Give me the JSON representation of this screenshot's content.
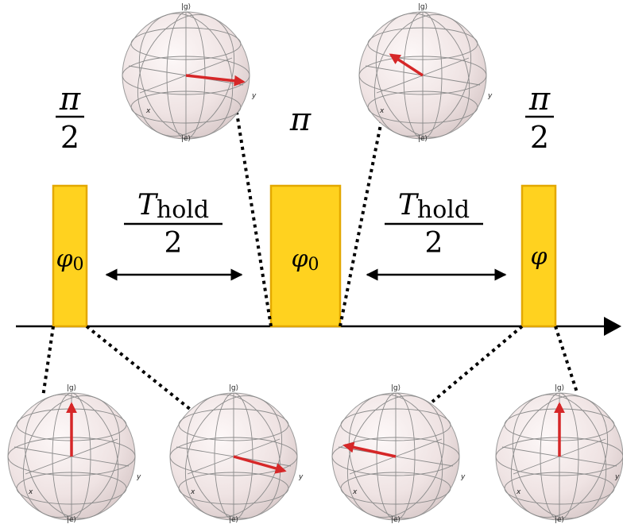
{
  "pulses": [
    {
      "angle_num": "π",
      "angle_den": "2",
      "phase": "φ",
      "phase_sub": "0"
    },
    {
      "angle": "π",
      "phase": "φ",
      "phase_sub": "0"
    },
    {
      "angle_num": "π",
      "angle_den": "2",
      "phase": "φ",
      "phase_sub": ""
    }
  ],
  "holds": [
    {
      "T": "T",
      "sub": "hold",
      "den": "2"
    },
    {
      "T": "T",
      "sub": "hold",
      "den": "2"
    }
  ],
  "bloch": {
    "top_label": "|g⟩",
    "bottom_label": "|e⟩",
    "x_label": "x",
    "y_label": "y"
  },
  "colors": {
    "pulse_fill": "#ffd21f",
    "pulse_edge": "#e3a800",
    "arrow_vector": "#d62728",
    "sphere": "#f4eaea"
  }
}
